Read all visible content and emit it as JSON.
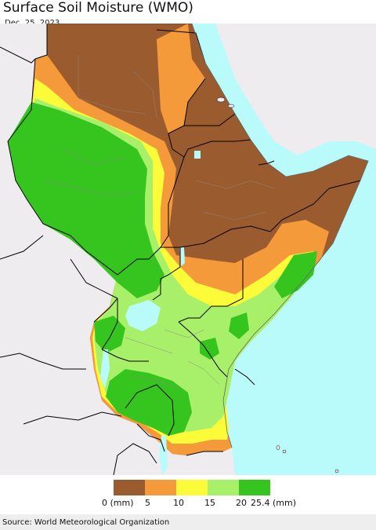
{
  "title": "Surface Soil Moisture (WMO)",
  "date": "Dec. 25, 2023",
  "source": "Source: World Meteorological Organization",
  "legend": {
    "colors": [
      "#9a5b2e",
      "#f59a3a",
      "#fbfb3a",
      "#a8f06a",
      "#36c41e"
    ],
    "labels": [
      "0 (mm)",
      "5",
      "10",
      "15",
      "20",
      "25.4 (mm)"
    ]
  },
  "palette": {
    "sea": "#b9fbfb",
    "outside": "#eeecef",
    "border": "#000000",
    "lake": "#b9fbfb"
  }
}
